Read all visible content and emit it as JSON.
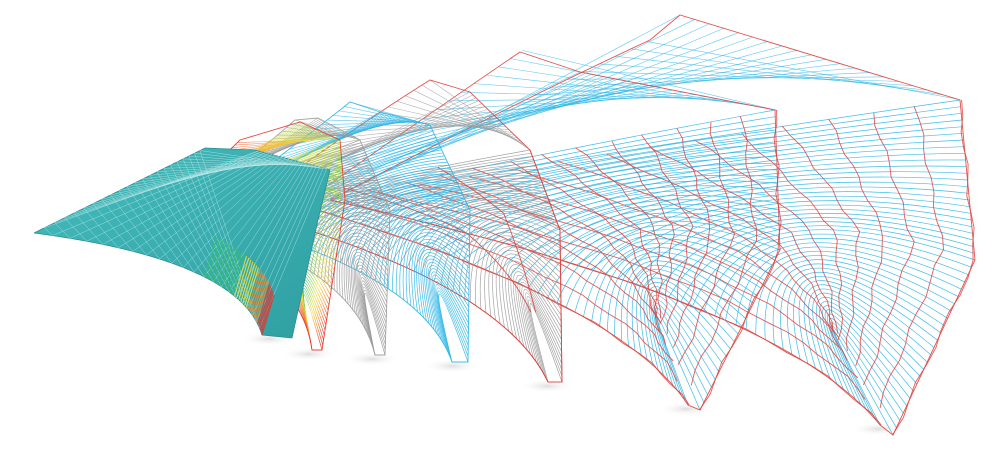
{
  "figure": {
    "description_free": true,
    "colors": {
      "background": "#ffffff",
      "teal_surface": "#3fb7b9",
      "teal_edge": "#2a8f92",
      "gradient_green": "#38c26a",
      "gradient_yellow": "#f2e23a",
      "gradient_orange": "#f28a2a",
      "gradient_red": "#e8342a",
      "gray_line": "#9a9a9a",
      "cyan_line": "#2bb6e6",
      "red_line": "#e0403c",
      "blue_line": "#3a7fd6"
    },
    "panels": [
      {
        "id": "panel-1",
        "style": "teal-triangulated"
      },
      {
        "id": "panel-2",
        "style": "gradient-lines"
      },
      {
        "id": "panel-3",
        "style": "gray-lines"
      },
      {
        "id": "panel-4",
        "style": "cyan-lines"
      },
      {
        "id": "panel-5",
        "style": "gray-red-lines"
      },
      {
        "id": "panel-6",
        "style": "cyan-red-grid"
      },
      {
        "id": "panel-7",
        "style": "cyan-red-grid-large"
      }
    ]
  }
}
